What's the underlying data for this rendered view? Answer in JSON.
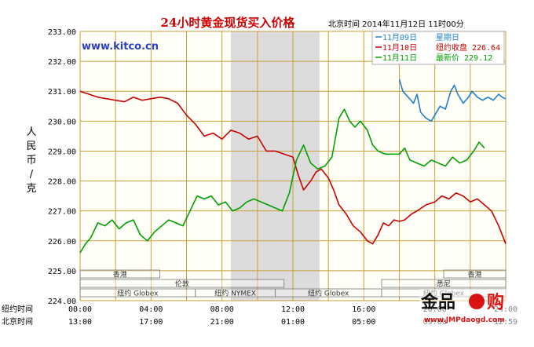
{
  "chart_data": {
    "type": "line",
    "title": "24小时黄金现货买入价格",
    "header_time": "北京时间    2014年11月12日 11时00分",
    "watermark_url": "www.kitco.cn",
    "ylabel": "人民币/克",
    "ylim": [
      224,
      233
    ],
    "yticks": [
      "233.00",
      "232.00",
      "231.00",
      "230.00",
      "229.00",
      "228.00",
      "227.00",
      "226.00",
      "225.00",
      "224.00"
    ],
    "x_rows": [
      {
        "label": "纽约时间",
        "ticks": [
          "00:00",
          "04:00",
          "08:00",
          "12:00",
          "16:00",
          "20:00",
          "24:00"
        ]
      },
      {
        "label": "北京时间",
        "ticks": [
          "13:00",
          "17:00",
          "21:00",
          "01:00",
          "05:00",
          "09:00",
          "12:59"
        ]
      }
    ],
    "x_range_hours": [
      0,
      24
    ],
    "grid": true,
    "shaded_region_hours": [
      8.5,
      13.5
    ],
    "sessions": [
      {
        "label": "香港",
        "start": 0,
        "end": 4.5,
        "row": 0
      },
      {
        "label": "香港",
        "start": 20.5,
        "end": 24,
        "row": 0
      },
      {
        "label": "伦敦",
        "start": 0,
        "end": 11.5,
        "row": 1
      },
      {
        "label": "悉尼",
        "start": 17,
        "end": 24,
        "row": 1
      },
      {
        "label": "纽约 Globex",
        "start": 0,
        "end": 6.5,
        "row": 2
      },
      {
        "label": "纽约 NYMEX",
        "start": 6.5,
        "end": 11,
        "row": 2
      },
      {
        "label": "纽约 Globex",
        "start": 11,
        "end": 17,
        "row": 2
      },
      {
        "label": "纽约 Globex",
        "start": 17,
        "end": 24,
        "row": 2
      }
    ],
    "legend_position": "top-right",
    "legend": [
      {
        "date": "11月09日",
        "desc": "星期日",
        "value": "",
        "color": "#1e7fd0"
      },
      {
        "date": "11月10日",
        "desc": "纽约收盘",
        "value": "226.64",
        "color": "#c80000"
      },
      {
        "date": "11月11日",
        "desc": "最新价",
        "value": "229.12",
        "color": "#00a000"
      }
    ],
    "series": [
      {
        "name": "11月09日",
        "color": "#1e7fd0",
        "points": [
          [
            18.0,
            231.4
          ],
          [
            18.2,
            231.0
          ],
          [
            18.5,
            230.8
          ],
          [
            18.8,
            230.6
          ],
          [
            19.0,
            230.9
          ],
          [
            19.2,
            230.3
          ],
          [
            19.5,
            230.1
          ],
          [
            19.8,
            230.0
          ],
          [
            20.0,
            230.2
          ],
          [
            20.3,
            230.5
          ],
          [
            20.6,
            230.4
          ],
          [
            20.9,
            231.0
          ],
          [
            21.1,
            231.2
          ],
          [
            21.3,
            230.9
          ],
          [
            21.6,
            230.6
          ],
          [
            21.9,
            230.8
          ],
          [
            22.1,
            231.0
          ],
          [
            22.4,
            230.8
          ],
          [
            22.7,
            230.7
          ],
          [
            23.0,
            230.8
          ],
          [
            23.3,
            230.7
          ],
          [
            23.6,
            230.9
          ],
          [
            23.8,
            230.8
          ],
          [
            24.0,
            230.75
          ]
        ]
      },
      {
        "name": "11月10日",
        "color": "#c80000",
        "points": [
          [
            0.0,
            231.0
          ],
          [
            0.5,
            230.9
          ],
          [
            1.0,
            230.8
          ],
          [
            1.5,
            230.75
          ],
          [
            2.0,
            230.7
          ],
          [
            2.5,
            230.65
          ],
          [
            3.0,
            230.8
          ],
          [
            3.5,
            230.7
          ],
          [
            4.0,
            230.75
          ],
          [
            4.5,
            230.8
          ],
          [
            5.0,
            230.75
          ],
          [
            5.5,
            230.6
          ],
          [
            6.0,
            230.2
          ],
          [
            6.5,
            229.9
          ],
          [
            7.0,
            229.5
          ],
          [
            7.5,
            229.6
          ],
          [
            8.0,
            229.4
          ],
          [
            8.5,
            229.7
          ],
          [
            9.0,
            229.6
          ],
          [
            9.5,
            229.4
          ],
          [
            10.0,
            229.5
          ],
          [
            10.5,
            229.0
          ],
          [
            11.0,
            229.0
          ],
          [
            11.5,
            228.9
          ],
          [
            12.0,
            228.8
          ],
          [
            12.3,
            228.2
          ],
          [
            12.6,
            227.7
          ],
          [
            13.0,
            228.0
          ],
          [
            13.3,
            228.3
          ],
          [
            13.6,
            228.4
          ],
          [
            14.0,
            228.1
          ],
          [
            14.3,
            227.7
          ],
          [
            14.6,
            227.2
          ],
          [
            15.0,
            226.9
          ],
          [
            15.4,
            226.5
          ],
          [
            15.8,
            226.3
          ],
          [
            16.2,
            226.0
          ],
          [
            16.5,
            225.9
          ],
          [
            16.8,
            226.2
          ],
          [
            17.1,
            226.6
          ],
          [
            17.4,
            226.5
          ],
          [
            17.7,
            226.7
          ],
          [
            18.0,
            226.65
          ],
          [
            18.3,
            226.7
          ],
          [
            18.7,
            226.9
          ],
          [
            19.0,
            227.0
          ],
          [
            19.5,
            227.2
          ],
          [
            20.0,
            227.3
          ],
          [
            20.4,
            227.5
          ],
          [
            20.8,
            227.4
          ],
          [
            21.2,
            227.6
          ],
          [
            21.6,
            227.5
          ],
          [
            22.0,
            227.3
          ],
          [
            22.4,
            227.4
          ],
          [
            22.8,
            227.2
          ],
          [
            23.2,
            227.0
          ],
          [
            23.6,
            226.5
          ],
          [
            24.0,
            225.9
          ]
        ]
      },
      {
        "name": "11月11日",
        "color": "#00a000",
        "points": [
          [
            0.0,
            225.6
          ],
          [
            0.3,
            225.9
          ],
          [
            0.6,
            226.1
          ],
          [
            1.0,
            226.6
          ],
          [
            1.4,
            226.5
          ],
          [
            1.8,
            226.7
          ],
          [
            2.2,
            226.4
          ],
          [
            2.6,
            226.6
          ],
          [
            3.0,
            226.7
          ],
          [
            3.4,
            226.2
          ],
          [
            3.8,
            226.0
          ],
          [
            4.2,
            226.3
          ],
          [
            4.6,
            226.5
          ],
          [
            5.0,
            226.7
          ],
          [
            5.4,
            226.6
          ],
          [
            5.8,
            226.5
          ],
          [
            6.2,
            227.0
          ],
          [
            6.6,
            227.5
          ],
          [
            7.0,
            227.4
          ],
          [
            7.4,
            227.5
          ],
          [
            7.8,
            227.2
          ],
          [
            8.2,
            227.3
          ],
          [
            8.6,
            227.0
          ],
          [
            9.0,
            227.1
          ],
          [
            9.4,
            227.3
          ],
          [
            9.8,
            227.4
          ],
          [
            10.2,
            227.3
          ],
          [
            10.6,
            227.2
          ],
          [
            11.0,
            227.1
          ],
          [
            11.4,
            227.0
          ],
          [
            11.8,
            227.6
          ],
          [
            12.2,
            228.7
          ],
          [
            12.6,
            229.2
          ],
          [
            13.0,
            228.6
          ],
          [
            13.4,
            228.4
          ],
          [
            13.8,
            228.5
          ],
          [
            14.2,
            228.8
          ],
          [
            14.6,
            230.1
          ],
          [
            14.9,
            230.4
          ],
          [
            15.2,
            230.0
          ],
          [
            15.5,
            229.8
          ],
          [
            15.8,
            230.0
          ],
          [
            16.2,
            229.7
          ],
          [
            16.5,
            229.2
          ],
          [
            16.8,
            229.0
          ],
          [
            17.2,
            228.9
          ],
          [
            17.6,
            228.9
          ],
          [
            18.0,
            228.9
          ],
          [
            18.3,
            229.1
          ],
          [
            18.6,
            228.7
          ],
          [
            19.0,
            228.6
          ],
          [
            19.4,
            228.5
          ],
          [
            19.8,
            228.7
          ],
          [
            20.2,
            228.6
          ],
          [
            20.6,
            228.5
          ],
          [
            21.0,
            228.8
          ],
          [
            21.4,
            228.6
          ],
          [
            21.8,
            228.7
          ],
          [
            22.2,
            229.0
          ],
          [
            22.5,
            229.3
          ],
          [
            22.8,
            229.1
          ]
        ]
      }
    ]
  }
}
